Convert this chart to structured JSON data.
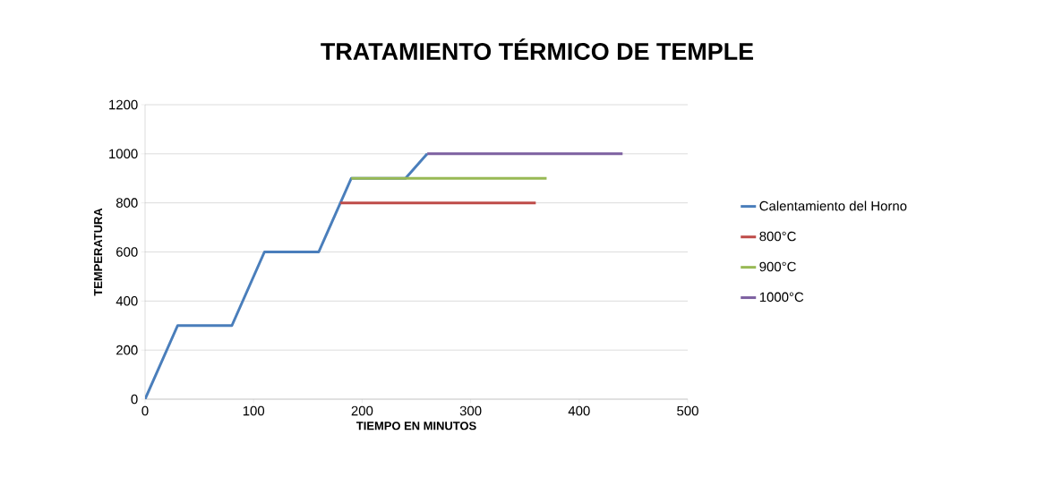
{
  "chart_data": {
    "type": "line",
    "title": "TRATAMIENTO TÉRMICO DE TEMPLE",
    "xlabel": "TIEMPO EN MINUTOS",
    "ylabel": "TEMPERATURA",
    "xlim": [
      0,
      500
    ],
    "xticks": [
      0,
      100,
      200,
      300,
      400,
      500
    ],
    "ylim": [
      0,
      1200
    ],
    "yticks": [
      0,
      200,
      400,
      600,
      800,
      1000,
      1200
    ],
    "grid": "y",
    "legend": "right",
    "marker": "none",
    "line_style": "solid",
    "series": [
      {
        "name": "Calentamiento del Horno",
        "color": "#4a7ebb",
        "x": [
          0,
          30,
          80,
          110,
          160,
          190,
          240,
          260
        ],
        "values": [
          0,
          300,
          300,
          600,
          600,
          900,
          900,
          1000
        ]
      },
      {
        "name": "800°C",
        "color": "#be4b48",
        "x": [
          180,
          360
        ],
        "values": [
          800,
          800
        ]
      },
      {
        "name": "900°C",
        "color": "#98b954",
        "x": [
          190,
          370
        ],
        "values": [
          900,
          900
        ]
      },
      {
        "name": "1000°C",
        "color": "#7d60a0",
        "x": [
          260,
          440
        ],
        "values": [
          1000,
          1000
        ]
      }
    ]
  }
}
